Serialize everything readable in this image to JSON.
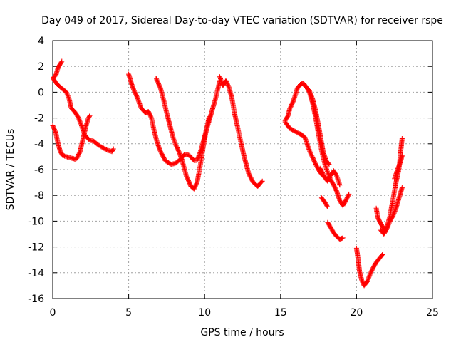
{
  "chart_data": {
    "type": "scatter",
    "title": "Day 049 of 2017, Sidereal Day-to-day VTEC variation (SDTVAR) for receiver rspe",
    "xlabel": "GPS time / hours",
    "ylabel": "SDTVAR / TECUs",
    "xlim": [
      0,
      25
    ],
    "ylim": [
      -16,
      4
    ],
    "x_ticks": [
      0,
      5,
      10,
      15,
      20,
      25
    ],
    "y_ticks": [
      -16,
      -14,
      -12,
      -10,
      -8,
      -6,
      -4,
      -2,
      0,
      2,
      4
    ],
    "grid": true,
    "marker": "+",
    "color": "#ff0000",
    "tracks": [
      [
        [
          0.0,
          1.1
        ],
        [
          0.2,
          1.3
        ],
        [
          0.35,
          1.9
        ],
        [
          0.5,
          2.2
        ],
        [
          0.6,
          2.4
        ]
      ],
      [
        [
          0.0,
          1.1
        ],
        [
          0.3,
          0.6
        ],
        [
          0.6,
          0.3
        ],
        [
          0.9,
          0.0
        ],
        [
          1.1,
          -0.6
        ],
        [
          1.2,
          -1.2
        ],
        [
          1.5,
          -1.6
        ],
        [
          1.7,
          -2.0
        ],
        [
          1.9,
          -2.6
        ],
        [
          2.1,
          -3.3
        ],
        [
          2.4,
          -3.7
        ],
        [
          2.7,
          -3.8
        ],
        [
          3.0,
          -4.1
        ],
        [
          3.3,
          -4.3
        ],
        [
          3.6,
          -4.5
        ],
        [
          3.9,
          -4.6
        ],
        [
          4.0,
          -4.4
        ]
      ],
      [
        [
          0.0,
          -2.6
        ],
        [
          0.2,
          -3.1
        ],
        [
          0.35,
          -4.0
        ],
        [
          0.5,
          -4.6
        ],
        [
          0.65,
          -4.9
        ],
        [
          0.9,
          -5.0
        ],
        [
          1.2,
          -5.1
        ],
        [
          1.5,
          -5.2
        ],
        [
          1.6,
          -5.1
        ],
        [
          1.8,
          -4.6
        ],
        [
          2.0,
          -3.6
        ],
        [
          2.2,
          -2.6
        ],
        [
          2.35,
          -2.0
        ],
        [
          2.45,
          -1.8
        ]
      ],
      [
        [
          5.0,
          1.4
        ],
        [
          5.2,
          0.6
        ],
        [
          5.4,
          0.0
        ],
        [
          5.6,
          -0.5
        ],
        [
          5.8,
          -1.2
        ],
        [
          6.1,
          -1.6
        ],
        [
          6.3,
          -1.5
        ],
        [
          6.5,
          -2.0
        ],
        [
          6.7,
          -3.1
        ],
        [
          6.9,
          -4.0
        ],
        [
          7.1,
          -4.6
        ],
        [
          7.4,
          -5.3
        ],
        [
          7.8,
          -5.6
        ],
        [
          8.1,
          -5.5
        ],
        [
          8.4,
          -5.2
        ],
        [
          8.7,
          -4.8
        ],
        [
          9.0,
          -4.9
        ],
        [
          9.3,
          -5.3
        ],
        [
          9.5,
          -5.3
        ],
        [
          9.7,
          -4.7
        ],
        [
          9.9,
          -3.9
        ],
        [
          10.1,
          -3.0
        ],
        [
          10.4,
          -1.8
        ],
        [
          10.7,
          -0.6
        ],
        [
          10.9,
          0.4
        ],
        [
          11.0,
          0.9
        ]
      ],
      [
        [
          6.8,
          1.1
        ],
        [
          7.1,
          0.3
        ],
        [
          7.3,
          -0.6
        ],
        [
          7.5,
          -1.6
        ],
        [
          7.7,
          -2.5
        ],
        [
          7.9,
          -3.4
        ],
        [
          8.1,
          -4.1
        ],
        [
          8.3,
          -4.6
        ],
        [
          8.5,
          -5.2
        ],
        [
          8.8,
          -6.5
        ],
        [
          9.1,
          -7.3
        ],
        [
          9.3,
          -7.5
        ],
        [
          9.5,
          -7.0
        ],
        [
          9.7,
          -5.8
        ],
        [
          9.9,
          -4.3
        ],
        [
          10.1,
          -3.0
        ],
        [
          10.3,
          -1.9
        ]
      ],
      [
        [
          11.0,
          1.2
        ],
        [
          11.2,
          0.5
        ],
        [
          11.4,
          0.9
        ],
        [
          11.6,
          0.4
        ],
        [
          11.8,
          -0.5
        ],
        [
          12.0,
          -1.8
        ],
        [
          12.3,
          -3.4
        ],
        [
          12.6,
          -5.0
        ],
        [
          12.9,
          -6.3
        ],
        [
          13.2,
          -7.0
        ],
        [
          13.5,
          -7.3
        ],
        [
          13.7,
          -7.0
        ],
        [
          13.8,
          -6.9
        ]
      ],
      [
        [
          15.3,
          -2.2
        ],
        [
          15.5,
          -1.8
        ],
        [
          15.6,
          -1.3
        ],
        [
          15.8,
          -0.8
        ],
        [
          15.95,
          -0.3
        ],
        [
          16.1,
          0.3
        ],
        [
          16.3,
          0.6
        ],
        [
          16.5,
          0.7
        ],
        [
          16.7,
          0.4
        ],
        [
          16.9,
          0.0
        ],
        [
          17.1,
          -0.8
        ],
        [
          17.3,
          -1.9
        ],
        [
          17.5,
          -3.3
        ],
        [
          17.7,
          -4.5
        ],
        [
          17.9,
          -5.5
        ],
        [
          18.1,
          -6.2
        ],
        [
          18.3,
          -6.8
        ],
        [
          18.5,
          -7.2
        ],
        [
          18.7,
          -7.7
        ],
        [
          18.9,
          -8.4
        ],
        [
          19.1,
          -8.8
        ],
        [
          19.3,
          -8.4
        ],
        [
          19.5,
          -7.9
        ]
      ],
      [
        [
          15.3,
          -2.3
        ],
        [
          15.6,
          -2.8
        ],
        [
          15.9,
          -3.0
        ],
        [
          16.2,
          -3.2
        ],
        [
          16.4,
          -3.3
        ],
        [
          16.6,
          -3.5
        ],
        [
          16.8,
          -4.2
        ],
        [
          17.0,
          -4.8
        ],
        [
          17.2,
          -5.3
        ],
        [
          17.4,
          -5.8
        ],
        [
          17.6,
          -6.2
        ],
        [
          17.8,
          -6.5
        ]
      ],
      [
        [
          16.6,
          0.5
        ],
        [
          16.9,
          0.1
        ],
        [
          17.1,
          -0.5
        ],
        [
          17.3,
          -1.4
        ],
        [
          17.5,
          -2.6
        ],
        [
          17.65,
          -3.6
        ],
        [
          17.8,
          -4.6
        ],
        [
          18.0,
          -5.3
        ],
        [
          18.2,
          -5.6
        ]
      ],
      [
        [
          17.6,
          -5.9
        ],
        [
          17.9,
          -6.6
        ],
        [
          18.1,
          -6.9
        ],
        [
          18.3,
          -6.4
        ],
        [
          18.5,
          -6.1
        ],
        [
          18.7,
          -6.5
        ],
        [
          18.9,
          -7.2
        ]
      ],
      [
        [
          17.7,
          -8.2
        ],
        [
          17.9,
          -8.5
        ],
        [
          18.1,
          -8.9
        ]
      ],
      [
        [
          18.1,
          -10.1
        ],
        [
          18.3,
          -10.5
        ],
        [
          18.5,
          -10.9
        ],
        [
          18.7,
          -11.2
        ],
        [
          18.9,
          -11.4
        ],
        [
          19.1,
          -11.3
        ]
      ],
      [
        [
          20.0,
          -12.1
        ],
        [
          20.1,
          -12.9
        ],
        [
          20.2,
          -13.9
        ],
        [
          20.35,
          -14.6
        ],
        [
          20.5,
          -15.0
        ],
        [
          20.7,
          -14.7
        ],
        [
          20.9,
          -14.1
        ],
        [
          21.1,
          -13.6
        ],
        [
          21.3,
          -13.2
        ],
        [
          21.5,
          -12.9
        ],
        [
          21.7,
          -12.6
        ]
      ],
      [
        [
          21.3,
          -9.0
        ],
        [
          21.4,
          -9.7
        ],
        [
          21.55,
          -10.1
        ],
        [
          21.7,
          -10.4
        ],
        [
          21.85,
          -10.7
        ],
        [
          22.0,
          -10.5
        ],
        [
          22.2,
          -9.6
        ],
        [
          22.4,
          -8.3
        ],
        [
          22.6,
          -7.0
        ],
        [
          22.8,
          -5.9
        ],
        [
          22.9,
          -4.7
        ],
        [
          23.0,
          -3.6
        ]
      ],
      [
        [
          21.6,
          -10.7
        ],
        [
          21.8,
          -11.0
        ],
        [
          22.0,
          -10.6
        ],
        [
          22.2,
          -10.0
        ],
        [
          22.4,
          -9.6
        ],
        [
          22.6,
          -9.0
        ],
        [
          22.8,
          -8.2
        ],
        [
          23.0,
          -7.4
        ]
      ],
      [
        [
          22.5,
          -6.7
        ],
        [
          22.7,
          -6.0
        ],
        [
          22.9,
          -5.4
        ],
        [
          23.0,
          -4.9
        ]
      ]
    ]
  }
}
